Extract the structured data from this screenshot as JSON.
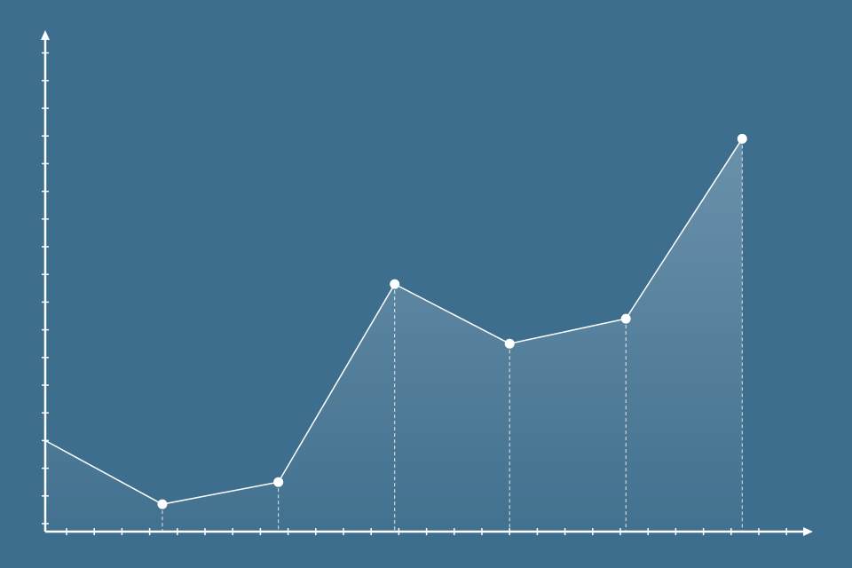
{
  "chart_data": {
    "type": "area",
    "title": "",
    "xlabel": "",
    "ylabel": "",
    "x": [
      0.23,
      4.46,
      8.65,
      12.85,
      17.0,
      21.2,
      25.4
    ],
    "values": [
      4.0,
      1.7,
      2.5,
      9.65,
      7.5,
      8.4,
      14.9
    ],
    "markers_on": [
      false,
      true,
      true,
      true,
      true,
      true,
      true
    ],
    "xlim": [
      0.23,
      27.0
    ],
    "ylim": [
      0.71,
      18.0
    ],
    "x_ticks": 27,
    "y_ticks": 18,
    "grid": false,
    "legend": "none",
    "colors": {
      "background": "#3e6e8e",
      "line": "#ffffff",
      "fill_top": "#6b91aa",
      "fill_bottom": "#42718f"
    }
  }
}
